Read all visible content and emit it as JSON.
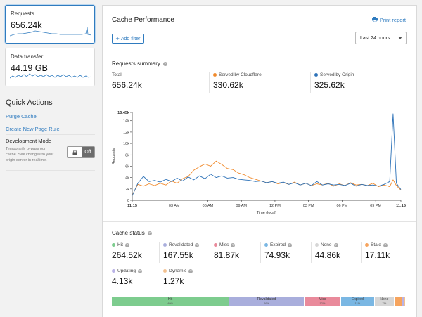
{
  "left": {
    "requests_card": {
      "label": "Requests",
      "value": "656.24k"
    },
    "transfer_card": {
      "label": "Data transfer",
      "value": "44.19 GB"
    },
    "quick_actions": {
      "title": "Quick Actions",
      "purge": "Purge Cache",
      "page_rule": "Create New Page Rule",
      "dev_mode_title": "Development Mode",
      "dev_mode_desc": "Temporarily bypass our cache. See changes to your origin server in realtime.",
      "toggle_label": "Off"
    }
  },
  "panel": {
    "title": "Cache Performance",
    "print_label": "Print report",
    "add_filter": "Add filter",
    "time_range": "Last 24 hours"
  },
  "requests_summary": {
    "title": "Requests summary",
    "total_label": "Total",
    "total_value": "656.24k",
    "cf_label": "Served by Cloudflare",
    "cf_value": "330.62k",
    "origin_label": "Served by Origin",
    "origin_value": "325.62k"
  },
  "cache_status": {
    "title": "Cache status",
    "items": [
      {
        "label": "Hit",
        "value": "264.52k",
        "color": "#7dcc8e"
      },
      {
        "label": "Revalidated",
        "value": "167.55k",
        "color": "#a9aedc"
      },
      {
        "label": "Miss",
        "value": "81.87k",
        "color": "#e98a9b"
      },
      {
        "label": "Expired",
        "value": "74.93k",
        "color": "#7ab7e3"
      },
      {
        "label": "None",
        "value": "44.86k",
        "color": "#d6d6d6"
      },
      {
        "label": "Stale",
        "value": "17.11k",
        "color": "#f6a45e"
      },
      {
        "label": "Updating",
        "value": "4.13k",
        "color": "#b9b2e6"
      },
      {
        "label": "Dynamic",
        "value": "1.27k",
        "color": "#f3c08e"
      }
    ],
    "bar": [
      {
        "label": "Hit",
        "pct": "40%",
        "share": 40,
        "color": "#7dcc8e"
      },
      {
        "label": "Revalidated",
        "pct": "26%",
        "share": 25.5,
        "color": "#a9aedc"
      },
      {
        "label": "Miss",
        "pct": "12%",
        "share": 12.5,
        "color": "#e98a9b"
      },
      {
        "label": "Expired",
        "pct": "11%",
        "share": 11.4,
        "color": "#7ab7e3"
      },
      {
        "label": "None",
        "pct": "7%",
        "share": 6.8,
        "color": "#d6d6d6"
      },
      {
        "label": "",
        "pct": "",
        "share": 2.6,
        "color": "#f6a45e"
      },
      {
        "label": "",
        "pct": "",
        "share": 0.7,
        "color": "#b9b2e6"
      },
      {
        "label": "",
        "pct": "",
        "share": 0.5,
        "color": "#f3c08e"
      }
    ]
  },
  "chart_data": {
    "type": "line",
    "ylabel": "Requests",
    "xlabel": "Time (local)",
    "ylim": [
      0,
      15450
    ],
    "y_ticks": [
      "0",
      "2k",
      "4k",
      "6k",
      "8k",
      "10k",
      "12k",
      "14k",
      "15.45k"
    ],
    "y_tick_values": [
      0,
      2000,
      4000,
      6000,
      8000,
      10000,
      12000,
      14000,
      15450
    ],
    "x_ticks": [
      "11:15",
      "03 AM",
      "06 AM",
      "09 AM",
      "12 PM",
      "03 PM",
      "06 PM",
      "09 PM",
      "11:15"
    ],
    "x_tick_hours": [
      0,
      3.75,
      6.75,
      9.75,
      12.75,
      15.75,
      18.75,
      21.75,
      24
    ],
    "series": [
      {
        "name": "Served by Cloudflare",
        "color": "#f08a2c",
        "hours": [
          0,
          0.5,
          1,
          1.5,
          2,
          2.5,
          3,
          3.5,
          4,
          4.5,
          5,
          5.5,
          6,
          6.5,
          7,
          7.5,
          8,
          8.5,
          9,
          9.5,
          10,
          10.5,
          11,
          11.5,
          12,
          12.5,
          13,
          13.5,
          14,
          14.5,
          15,
          15.5,
          16,
          16.5,
          17,
          17.5,
          18,
          18.5,
          19,
          19.5,
          20,
          20.5,
          21,
          21.5,
          22,
          22.5,
          23,
          23.3,
          23.6,
          24
        ],
        "values": [
          900,
          2800,
          2500,
          2900,
          2600,
          3000,
          2700,
          3400,
          3000,
          3800,
          4200,
          5300,
          5900,
          6400,
          6000,
          6900,
          6300,
          5600,
          5400,
          4800,
          4500,
          4000,
          3700,
          3400,
          3100,
          3300,
          2900,
          3100,
          2800,
          3200,
          2700,
          3000,
          2600,
          2900,
          2700,
          3000,
          2500,
          2900,
          2600,
          3100,
          2700,
          2800,
          2600,
          3000,
          2400,
          2700,
          2400,
          3600,
          2600,
          1800
        ]
      },
      {
        "name": "Served by Origin",
        "color": "#2d72b8",
        "hours": [
          0,
          0.5,
          1,
          1.5,
          2,
          2.5,
          3,
          3.5,
          4,
          4.5,
          5,
          5.5,
          6,
          6.5,
          7,
          7.5,
          8,
          8.5,
          9,
          9.5,
          10,
          10.5,
          11,
          11.5,
          12,
          12.5,
          13,
          13.5,
          14,
          14.5,
          15,
          15.5,
          16,
          16.5,
          17,
          17.5,
          18,
          18.5,
          19,
          19.5,
          20,
          20.5,
          21,
          21.5,
          22,
          22.5,
          23,
          23.3,
          23.6,
          24
        ],
        "values": [
          800,
          3000,
          4200,
          3300,
          3500,
          3200,
          3700,
          3300,
          3900,
          3400,
          4100,
          3600,
          4300,
          3800,
          4600,
          4000,
          4300,
          3900,
          4000,
          3700,
          3600,
          3500,
          3300,
          3400,
          3100,
          3300,
          3000,
          3200,
          2800,
          3100,
          2700,
          3000,
          2600,
          3300,
          2700,
          2900,
          2700,
          2800,
          2600,
          3000,
          2500,
          2800,
          2600,
          2700,
          2500,
          2800,
          3300,
          15200,
          3000,
          1900
        ]
      }
    ]
  }
}
